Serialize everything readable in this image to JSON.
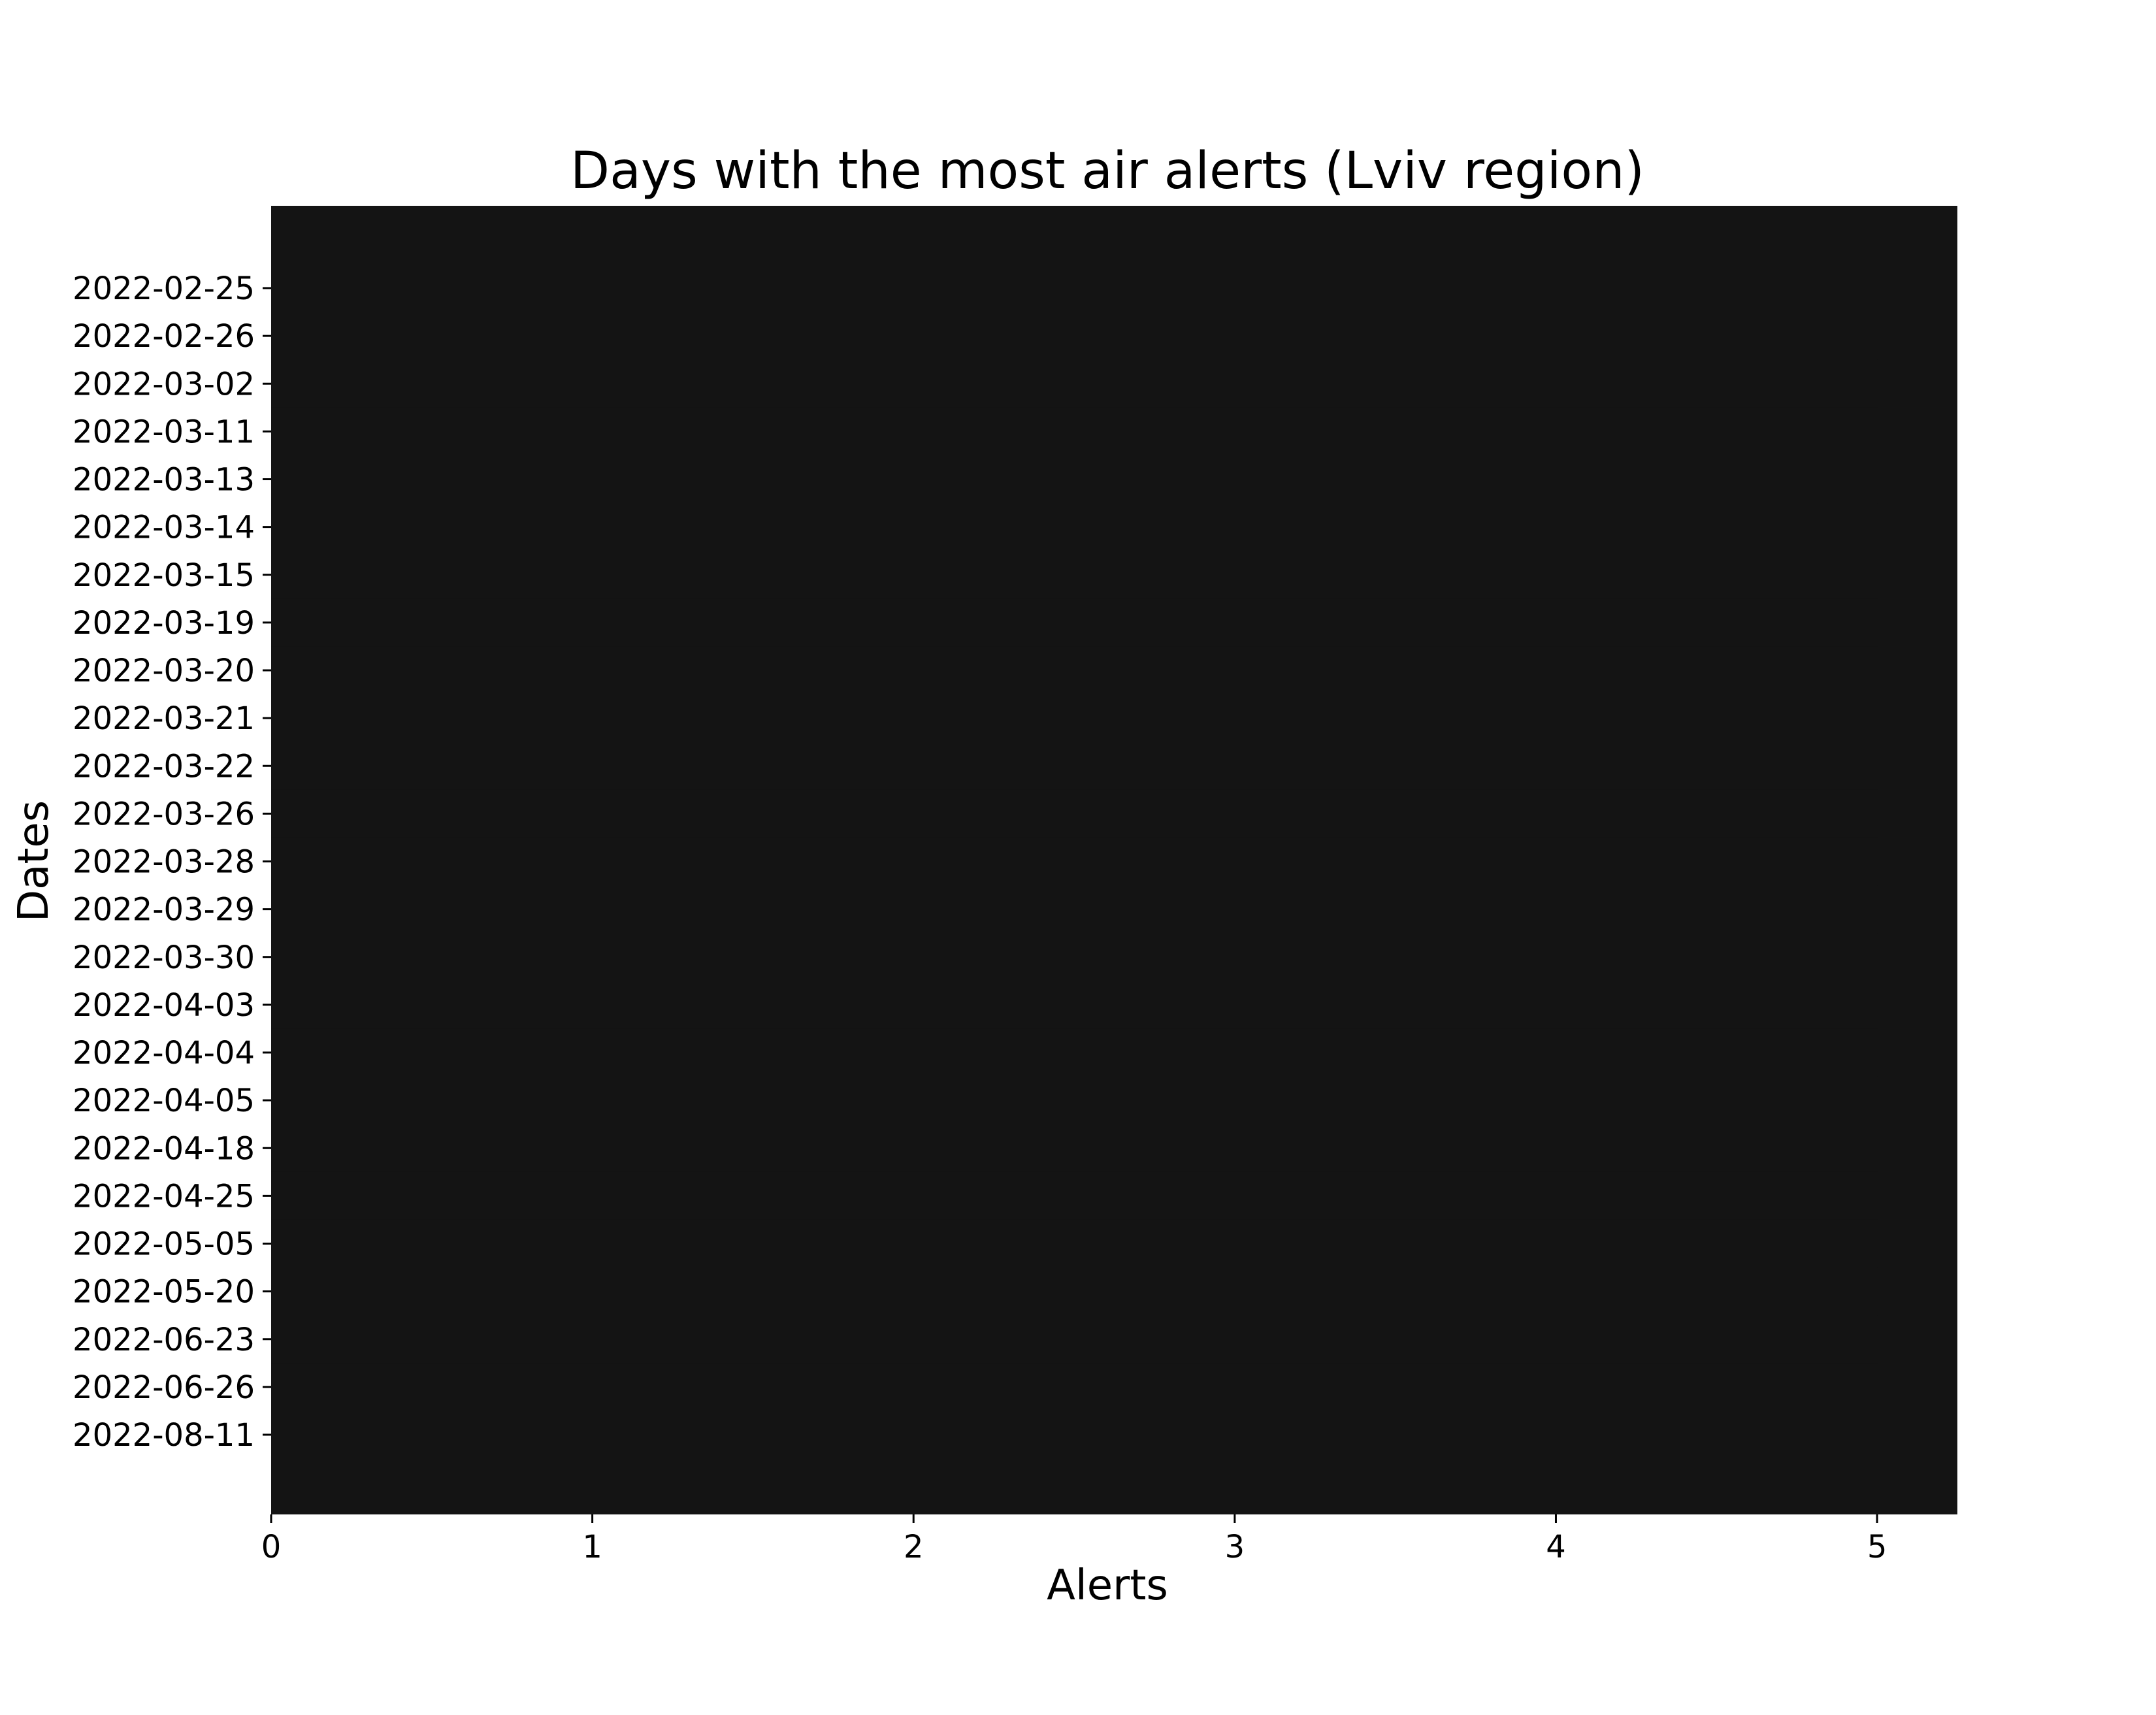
{
  "chart_data": {
    "type": "bar",
    "orientation": "horizontal",
    "title": "Days with the most air alerts (Lviv region)",
    "xlabel": "Alerts",
    "ylabel": "Dates",
    "categories": [
      "2022-02-25",
      "2022-02-26",
      "2022-03-02",
      "2022-03-11",
      "2022-03-13",
      "2022-03-14",
      "2022-03-15",
      "2022-03-19",
      "2022-03-20",
      "2022-03-21",
      "2022-03-22",
      "2022-03-26",
      "2022-03-28",
      "2022-03-29",
      "2022-03-30",
      "2022-04-03",
      "2022-04-04",
      "2022-04-05",
      "2022-04-18",
      "2022-04-25",
      "2022-05-05",
      "2022-05-20",
      "2022-06-23",
      "2022-06-26",
      "2022-08-11"
    ],
    "values": [
      5,
      5,
      5,
      5,
      5,
      5,
      5,
      5,
      5,
      5,
      5,
      5,
      5,
      5,
      5,
      5,
      5,
      5,
      5,
      5,
      5,
      5,
      5,
      5,
      5
    ],
    "xlim": [
      0,
      5.25
    ],
    "xticks": [
      "0",
      "1",
      "2",
      "3",
      "4",
      "5"
    ],
    "grid": false,
    "legend": "none",
    "colors": {
      "bar": "#141414",
      "background": "#ffffff",
      "text": "#000000"
    }
  }
}
